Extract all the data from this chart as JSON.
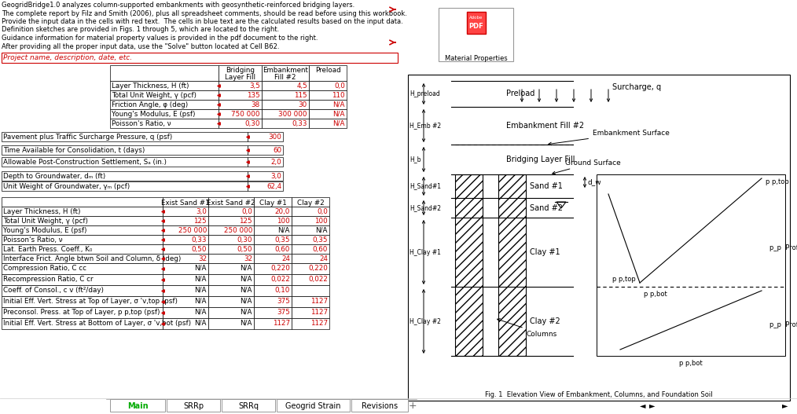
{
  "title_lines": [
    "GeogridBridge1.0 analyzes column-supported embankments with geosynthetic-reinforced bridging layers.",
    "The complete report by Filz and Smith (2006), plus all spreadsheet comments, should be read before using this workbook.",
    "Provide the input data in the cells with red text.  The cells in blue text are the calculated results based on the input data.",
    "Definition sketches are provided in Figs. 1 through 5, which are located to the right.",
    "Guidance information for material property values is provided in the pdf document to the right.",
    "After providing all the proper input data, use the \"Solve\" button located at Cell B62."
  ],
  "project_label": "Project name, description, date, etc.",
  "table1_headers": [
    "",
    "Bridging\nLayer Fill",
    "Embankment\nFill #2",
    "Preload"
  ],
  "table1_rows": [
    [
      "Layer Thickness, H (ft)",
      "3,5",
      "4,5",
      "0,0"
    ],
    [
      "Total Unit Weight, γ (pcf)",
      "135",
      "115",
      "110"
    ],
    [
      "Friction Angle, φ (deg)",
      "38",
      "30",
      "N/A"
    ],
    [
      "Young's Modulus, E (psf)",
      "750 000",
      "300 000",
      "N/A"
    ],
    [
      "Poisson's Ratio, ν",
      "0,30",
      "0,33",
      "N/A"
    ]
  ],
  "pavt_label": "Pavement plus Traffic Surcharge Pressure, q (psf)",
  "pavt_value": "300",
  "time_label": "Time Available for Consolidation, t (days)",
  "time_value": "60",
  "settle_label": "Allowable Post-Construction Settlement, Sₐ (in.)",
  "settle_value": "2,0",
  "gw_depth_label": "Depth to Groundwater, dₘ (ft)",
  "gw_depth_value": "3,0",
  "gw_unit_label": "Unit Weight of Groundwater, γₘ (pcf)",
  "gw_unit_value": "62,4",
  "table2_headers": [
    "",
    "Exist Sand #1",
    "Exist Sand #2",
    "Clay #1",
    "Clay #2"
  ],
  "table2_rows": [
    [
      "Layer Thickness, H (ft)",
      "3,0",
      "0,0",
      "20,0",
      "0,0"
    ],
    [
      "Total Unit Weight, γ (pcf)",
      "125",
      "125",
      "100",
      "100"
    ],
    [
      "Young's Modulus, E (psf)",
      "250 000",
      "250 000",
      "N/A",
      "N/A"
    ],
    [
      "Poisson's Ratio, ν",
      "0,33",
      "0,30",
      "0,35",
      "0,35"
    ],
    [
      "Lat. Earth Press. Coeff., K₀",
      "0,50",
      "0,50",
      "0,60",
      "0,60"
    ],
    [
      "Interface Frict. Angle btwn Soil and Column, δ (deg)",
      "32",
      "32",
      "24",
      "24"
    ],
    [
      "Compression Ratio, C cc",
      "N/A",
      "N/A",
      "0,220",
      "0,220"
    ],
    [
      "Recompression Ratio, C cr",
      "N/A",
      "N/A",
      "0,022",
      "0,022"
    ],
    [
      "Coeff. of Consol., c v (ft²/day)",
      "N/A",
      "N/A",
      "0,10",
      ""
    ],
    [
      "Initial Eff. Vert. Stress at Top of Layer, σ 'v,top (psf)",
      "N/A",
      "N/A",
      "375",
      "1127"
    ],
    [
      "Preconsol. Press. at Top of Layer, p p,top (psf)",
      "N/A",
      "N/A",
      "375",
      "1127"
    ],
    [
      "Initial Eff. Vert. Stress at Bottom of Layer, σ 'v,bot (psf)",
      "N/A",
      "N/A",
      "1127",
      "1127"
    ]
  ],
  "tab_labels": [
    "Main",
    "SRRp",
    "SRRq",
    "Geogrid Strain",
    "Revisions"
  ],
  "active_tab": "Main",
  "bg_color": "#ffffff",
  "red_color": "#cc0000",
  "blue_color": "#1f497d",
  "black_color": "#000000"
}
